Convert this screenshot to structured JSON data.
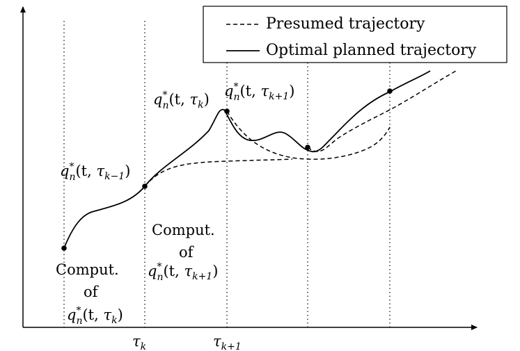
{
  "legend": {
    "presumed_label": "Presumed trajectory",
    "optimal_label": "Optimal planned trajectory"
  },
  "x_ticks": {
    "tau_k": {
      "base": "τ",
      "sub": "k"
    },
    "tau_k1": {
      "base": "τ",
      "sub": "k+1"
    }
  },
  "point_labels": {
    "q_tau_k_minus_1": {
      "q": "q",
      "star": "*",
      "n": "n",
      "args": "(t, ",
      "tau": "τ",
      "sub": "k−1",
      "close": ")"
    },
    "q_tau_k": {
      "q": "q",
      "star": "*",
      "n": "n",
      "args": "(t, ",
      "tau": "τ",
      "sub": "k",
      "close": ")"
    },
    "q_tau_k_plus_1": {
      "q": "q",
      "star": "*",
      "n": "n",
      "args": "(t, ",
      "tau": "τ",
      "sub": "k+1",
      "close": ")"
    }
  },
  "comput_blocks": {
    "first": {
      "line1": "Comput.",
      "line2": "of",
      "q": "q",
      "star": "*",
      "n": "n",
      "args": "(t, ",
      "tau": "τ",
      "sub": "k",
      "close": ")"
    },
    "second": {
      "line1": "Comput.",
      "line2": "of",
      "q": "q",
      "star": "*",
      "n": "n",
      "args": "(t, ",
      "tau": "τ",
      "sub": "k+1",
      "close": ")"
    }
  },
  "colors": {
    "line": "#000000",
    "background": "#ffffff"
  }
}
